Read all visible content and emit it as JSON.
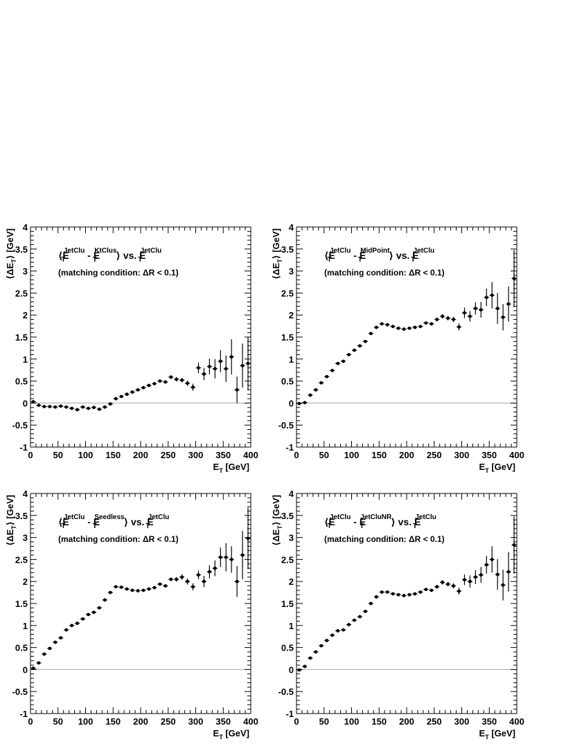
{
  "figure": {
    "xlabel": "E",
    "xlabel_sub": "T",
    "xlabel_unit": " [GeV]",
    "ylabel": "⟨ΔE",
    "ylabel_sub": "T",
    "ylabel_unit": "⟩ [GeV]",
    "subtitle": "(matching condition: ΔR < 0.1)"
  },
  "chart_data": [
    {
      "type": "scatter",
      "panel": "top-left",
      "title_parts": {
        "open": "⟨E",
        "sup_a": "JetClu",
        "mid": " - E",
        "sup_b": "KtClus",
        "close": "⟩ vs. E",
        "sup_c": "JetClu",
        "sub": "T"
      },
      "xlim": [
        0,
        400
      ],
      "ylim": [
        -1,
        4
      ],
      "xticks": [
        0,
        50,
        100,
        150,
        200,
        250,
        300,
        350,
        400
      ],
      "yticks": [
        -1,
        -0.5,
        0,
        0.5,
        1,
        1.5,
        2,
        2.5,
        3,
        3.5,
        4
      ],
      "reference_line_y": 0,
      "x": [
        5,
        15,
        25,
        35,
        45,
        55,
        65,
        75,
        85,
        95,
        105,
        115,
        125,
        135,
        145,
        155,
        165,
        175,
        185,
        195,
        205,
        215,
        225,
        235,
        245,
        255,
        265,
        275,
        285,
        295,
        305,
        315,
        325,
        335,
        345,
        355,
        365,
        375,
        385,
        395
      ],
      "y": [
        0.03,
        -0.05,
        -0.08,
        -0.08,
        -0.09,
        -0.07,
        -0.09,
        -0.12,
        -0.15,
        -0.09,
        -0.12,
        -0.1,
        -0.14,
        -0.09,
        -0.02,
        0.1,
        0.15,
        0.2,
        0.25,
        0.3,
        0.35,
        0.4,
        0.44,
        0.5,
        0.48,
        0.59,
        0.54,
        0.52,
        0.45,
        0.36,
        0.8,
        0.66,
        0.83,
        0.78,
        0.95,
        0.78,
        1.05,
        0.3,
        0.85,
        0.9
      ],
      "yerr": [
        0.01,
        0.01,
        0.01,
        0.01,
        0.01,
        0.01,
        0.01,
        0.02,
        0.02,
        0.02,
        0.02,
        0.02,
        0.02,
        0.02,
        0.02,
        0.02,
        0.02,
        0.02,
        0.02,
        0.02,
        0.02,
        0.02,
        0.03,
        0.03,
        0.03,
        0.04,
        0.05,
        0.05,
        0.06,
        0.08,
        0.12,
        0.14,
        0.18,
        0.22,
        0.25,
        0.3,
        0.4,
        0.3,
        0.5,
        0.6
      ]
    },
    {
      "type": "scatter",
      "panel": "top-right",
      "title_parts": {
        "open": "⟨E",
        "sup_a": "JetClu",
        "mid": " - E",
        "sup_b": "MidPoint",
        "close": "⟩ vs. E",
        "sup_c": "JetClu",
        "sub": "T"
      },
      "xlim": [
        0,
        400
      ],
      "ylim": [
        -1,
        4
      ],
      "xticks": [
        0,
        50,
        100,
        150,
        200,
        250,
        300,
        350,
        400
      ],
      "yticks": [
        -1,
        -0.5,
        0,
        0.5,
        1,
        1.5,
        2,
        2.5,
        3,
        3.5,
        4
      ],
      "reference_line_y": 0,
      "x": [
        5,
        15,
        25,
        35,
        45,
        55,
        65,
        75,
        85,
        95,
        105,
        115,
        125,
        135,
        145,
        155,
        165,
        175,
        185,
        195,
        205,
        215,
        225,
        235,
        245,
        255,
        265,
        275,
        285,
        295,
        305,
        315,
        325,
        335,
        345,
        355,
        365,
        375,
        385,
        395
      ],
      "y": [
        -0.01,
        0.01,
        0.18,
        0.3,
        0.46,
        0.6,
        0.74,
        0.9,
        0.95,
        1.1,
        1.2,
        1.3,
        1.4,
        1.58,
        1.72,
        1.8,
        1.78,
        1.74,
        1.7,
        1.68,
        1.7,
        1.72,
        1.74,
        1.82,
        1.8,
        1.9,
        1.97,
        1.93,
        1.9,
        1.73,
        2.05,
        1.97,
        2.15,
        2.12,
        2.4,
        2.45,
        2.15,
        1.95,
        2.25,
        2.83
      ],
      "yerr": [
        0.01,
        0.01,
        0.01,
        0.01,
        0.01,
        0.01,
        0.01,
        0.02,
        0.02,
        0.02,
        0.02,
        0.02,
        0.02,
        0.02,
        0.02,
        0.02,
        0.02,
        0.02,
        0.02,
        0.02,
        0.02,
        0.02,
        0.03,
        0.03,
        0.03,
        0.04,
        0.05,
        0.05,
        0.06,
        0.08,
        0.12,
        0.12,
        0.14,
        0.18,
        0.2,
        0.3,
        0.35,
        0.3,
        0.4,
        0.65
      ]
    },
    {
      "type": "scatter",
      "panel": "bottom-left",
      "title_parts": {
        "open": "⟨E",
        "sup_a": "JetClu",
        "mid": " - E",
        "sup_b": "Seedless",
        "close": "⟩ vs. E",
        "sup_c": "JetClu",
        "sub": "T"
      },
      "xlim": [
        0,
        400
      ],
      "ylim": [
        -1,
        4
      ],
      "xticks": [
        0,
        50,
        100,
        150,
        200,
        250,
        300,
        350,
        400
      ],
      "yticks": [
        -1,
        -0.5,
        0,
        0.5,
        1,
        1.5,
        2,
        2.5,
        3,
        3.5,
        4
      ],
      "reference_line_y": 0,
      "x": [
        5,
        15,
        25,
        35,
        45,
        55,
        65,
        75,
        85,
        95,
        105,
        115,
        125,
        135,
        145,
        155,
        165,
        175,
        185,
        195,
        205,
        215,
        225,
        235,
        245,
        255,
        265,
        275,
        285,
        295,
        305,
        315,
        325,
        335,
        345,
        355,
        365,
        375,
        385,
        395
      ],
      "y": [
        0.03,
        0.15,
        0.35,
        0.48,
        0.62,
        0.72,
        0.9,
        1.0,
        1.05,
        1.15,
        1.25,
        1.3,
        1.4,
        1.58,
        1.75,
        1.88,
        1.87,
        1.83,
        1.8,
        1.79,
        1.8,
        1.83,
        1.86,
        1.94,
        1.9,
        2.05,
        2.05,
        2.1,
        2.0,
        1.88,
        2.15,
        2.0,
        2.22,
        2.3,
        2.55,
        2.55,
        2.5,
        2.0,
        2.6,
        2.98
      ],
      "yerr": [
        0.01,
        0.01,
        0.01,
        0.01,
        0.01,
        0.01,
        0.01,
        0.02,
        0.02,
        0.02,
        0.02,
        0.02,
        0.02,
        0.02,
        0.02,
        0.02,
        0.02,
        0.02,
        0.02,
        0.02,
        0.02,
        0.02,
        0.03,
        0.03,
        0.03,
        0.04,
        0.05,
        0.06,
        0.07,
        0.08,
        0.1,
        0.13,
        0.15,
        0.18,
        0.22,
        0.32,
        0.3,
        0.35,
        0.55,
        0.7
      ]
    },
    {
      "type": "scatter",
      "panel": "bottom-right",
      "title_parts": {
        "open": "⟨E",
        "sup_a": "JetClu",
        "mid": " - E",
        "sup_b": "JetCluNR",
        "close": "⟩ vs. E",
        "sup_c": "JetClu",
        "sub": "T"
      },
      "xlim": [
        0,
        400
      ],
      "ylim": [
        -1,
        4
      ],
      "xticks": [
        0,
        50,
        100,
        150,
        200,
        250,
        300,
        350,
        400
      ],
      "yticks": [
        -1,
        -0.5,
        0,
        0.5,
        1,
        1.5,
        2,
        2.5,
        3,
        3.5,
        4
      ],
      "reference_line_y": 0,
      "x": [
        5,
        15,
        25,
        35,
        45,
        55,
        65,
        75,
        85,
        95,
        105,
        115,
        125,
        135,
        145,
        155,
        165,
        175,
        185,
        195,
        205,
        215,
        225,
        235,
        245,
        255,
        265,
        275,
        285,
        295,
        305,
        315,
        325,
        335,
        345,
        355,
        365,
        375,
        385,
        395
      ],
      "y": [
        -0.01,
        0.07,
        0.26,
        0.4,
        0.54,
        0.66,
        0.78,
        0.88,
        0.9,
        1.02,
        1.12,
        1.2,
        1.32,
        1.5,
        1.65,
        1.76,
        1.76,
        1.72,
        1.7,
        1.68,
        1.7,
        1.72,
        1.76,
        1.82,
        1.8,
        1.88,
        1.98,
        1.94,
        1.9,
        1.78,
        2.04,
        2.0,
        2.1,
        2.15,
        2.38,
        2.5,
        2.16,
        1.92,
        2.22,
        2.83
      ],
      "yerr": [
        0.01,
        0.01,
        0.01,
        0.01,
        0.01,
        0.01,
        0.01,
        0.02,
        0.02,
        0.02,
        0.02,
        0.02,
        0.02,
        0.02,
        0.02,
        0.02,
        0.02,
        0.02,
        0.02,
        0.02,
        0.02,
        0.02,
        0.03,
        0.03,
        0.03,
        0.04,
        0.05,
        0.05,
        0.06,
        0.08,
        0.12,
        0.14,
        0.16,
        0.18,
        0.2,
        0.3,
        0.35,
        0.35,
        0.45,
        0.65
      ]
    }
  ]
}
